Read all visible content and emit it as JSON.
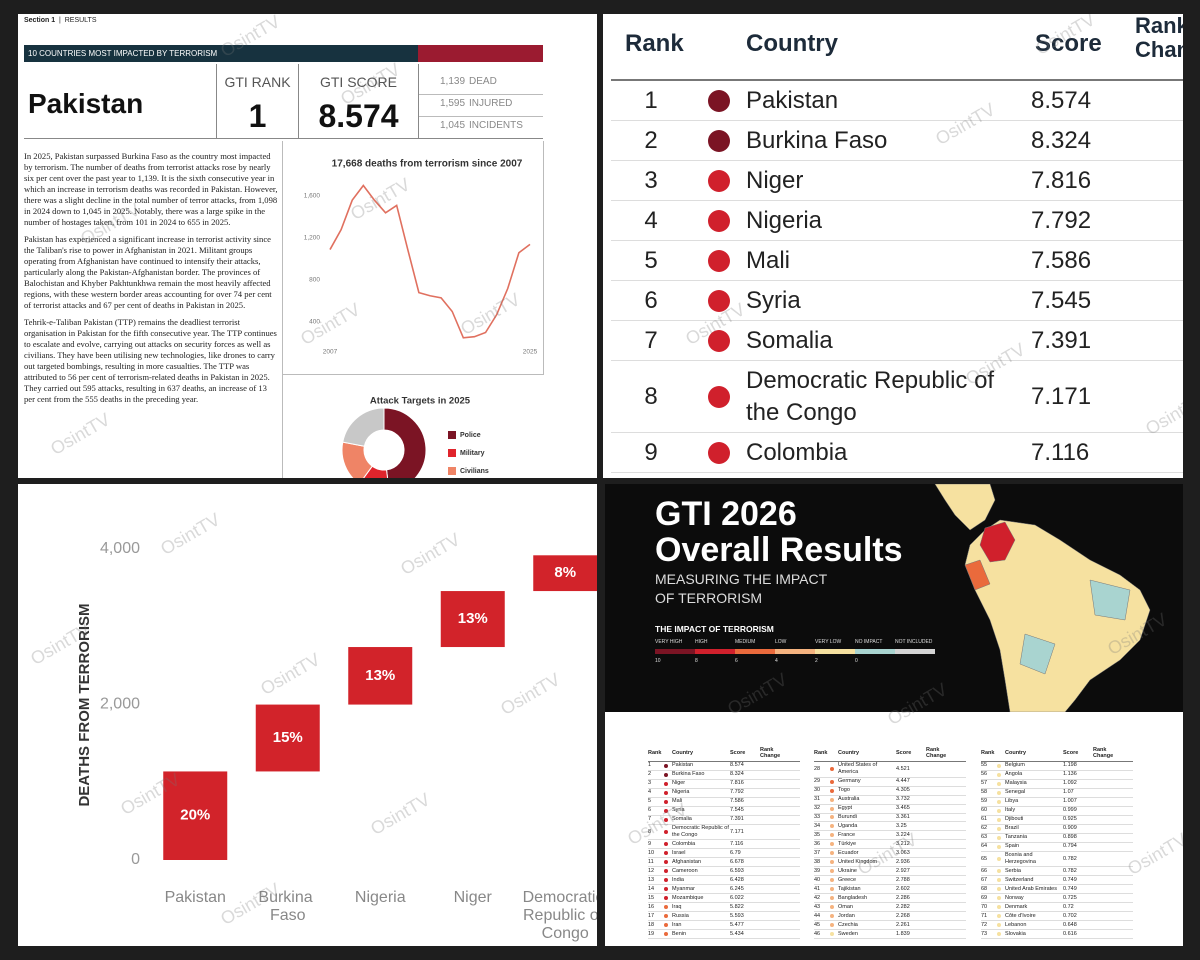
{
  "watermark": "OsintTV",
  "report": {
    "section": "Section 1",
    "section_name": "RESULTS",
    "banner": "10 COUNTRIES MOST IMPACTED BY TERRORISM",
    "country": "Pakistan",
    "rank_label": "GTI RANK",
    "rank": 1,
    "score_label": "GTI SCORE",
    "score": 8.574,
    "stats": [
      {
        "value": "1,139",
        "label": "DEAD"
      },
      {
        "value": "1,595",
        "label": "INJURED"
      },
      {
        "value": "1,045",
        "label": "INCIDENTS"
      }
    ],
    "paragraphs": [
      "In 2025, Pakistan surpassed Burkina Faso as the country most impacted by terrorism. The number of deaths from terrorist attacks rose by nearly six per cent over the past year to 1,139. It is the sixth consecutive year in which an increase in terrorism deaths was recorded in Pakistan. However, there was a slight decline in the total number of terror attacks, from 1,098 in 2024 down to 1,045 in 2025. Notably, there was a large spike in the number of hostages taken, from 101 in 2024 to 655 in 2025.",
      "Pakistan has experienced a significant increase in terrorist activity since the Taliban's rise to power in Afghanistan in 2021. Militant groups operating from Afghanistan have continued to intensify their attacks, particularly along the Pakistan-Afghanistan border. The provinces of Balochistan and Khyber Pakhtunkhwa remain the most heavily affected regions, with these western border areas accounting for over 74 per cent of terrorist attacks and 67 per cent of deaths in Pakistan in 2025.",
      "Tehrik-e-Taliban Pakistan (TTP) remains the deadliest terrorist organisation in Pakistan for the fifth consecutive year. The TTP continues to escalate and evolve, carrying out attacks on security forces as well as civilians. They have been utilising new technologies, like drones to carry out targeted bombings, resulting in more casualties. The TTP was attributed to 56 per cent of terrorism-related deaths in Pakistan in 2025. They carried out 595 attacks, resulting in 637 deaths, an increase of 13 per cent from the 555 deaths in the preceding year."
    ]
  },
  "ranking": {
    "columns": [
      "Rank",
      "Country",
      "Score",
      "Rank Change"
    ],
    "rows": [
      [
        1,
        "Pakistan",
        8.574
      ],
      [
        2,
        "Burkina Faso",
        8.324
      ],
      [
        3,
        "Niger",
        7.816
      ],
      [
        4,
        "Nigeria",
        7.792
      ],
      [
        5,
        "Mali",
        7.586
      ],
      [
        6,
        "Syria",
        7.545
      ],
      [
        7,
        "Somalia",
        7.391
      ],
      [
        8,
        "Democratic Republic of the Congo",
        7.171
      ],
      [
        9,
        "Colombia",
        7.116
      ]
    ]
  },
  "cover": {
    "title_line1": "GTI 2026",
    "title_line2": "Overall Results",
    "subtitle": "MEASURING THE IMPACT OF TERRORISM",
    "legend_title": "THE IMPACT OF TERRORISM",
    "legend": [
      {
        "label": "VERY HIGH",
        "color": "#7b1424"
      },
      {
        "label": "HIGH",
        "color": "#d0202c"
      },
      {
        "label": "MEDIUM",
        "color": "#ea6a3c"
      },
      {
        "label": "LOW",
        "color": "#f5b37f"
      },
      {
        "label": "VERY LOW",
        "color": "#f6e1a0"
      },
      {
        "label": "NO IMPACT",
        "color": "#a9d4d0"
      },
      {
        "label": "NOT INCLUDED",
        "color": "#d4d4d4"
      }
    ],
    "legend_ticks": [
      10,
      8,
      6,
      4,
      2,
      0
    ],
    "columns": [
      "Rank",
      "Country",
      "Score",
      "Rank Change"
    ],
    "tables": [
      [
        [
          1,
          "Pakistan",
          8.574
        ],
        [
          2,
          "Burkina Faso",
          8.324
        ],
        [
          3,
          "Niger",
          7.816
        ],
        [
          4,
          "Nigeria",
          7.792
        ],
        [
          5,
          "Mali",
          7.586
        ],
        [
          6,
          "Syria",
          7.545
        ],
        [
          7,
          "Somalia",
          7.391
        ],
        [
          8,
          "Democratic Republic of the Congo",
          7.171
        ],
        [
          9,
          "Colombia",
          7.116
        ],
        [
          10,
          "Israel",
          6.79
        ],
        [
          11,
          "Afghanistan",
          6.678
        ],
        [
          12,
          "Cameroon",
          6.593
        ],
        [
          13,
          "India",
          6.428
        ],
        [
          14,
          "Myanmar",
          6.245
        ],
        [
          15,
          "Mozambique",
          6.022
        ],
        [
          16,
          "Iraq",
          5.822
        ],
        [
          17,
          "Russia",
          5.593
        ],
        [
          18,
          "Iran",
          5.477
        ],
        [
          19,
          "Benin",
          5.434
        ]
      ],
      [
        [
          28,
          "United States of America",
          4.521
        ],
        [
          29,
          "Germany",
          4.447
        ],
        [
          30,
          "Togo",
          4.305
        ],
        [
          31,
          "Australia",
          3.732
        ],
        [
          32,
          "Egypt",
          3.465
        ],
        [
          33,
          "Burundi",
          3.361
        ],
        [
          34,
          "Uganda",
          3.25
        ],
        [
          35,
          "France",
          3.224
        ],
        [
          36,
          "Türkiye",
          3.212
        ],
        [
          37,
          "Ecuador",
          3.063
        ],
        [
          38,
          "United Kingdom",
          2.936
        ],
        [
          39,
          "Ukraine",
          2.927
        ],
        [
          40,
          "Greece",
          2.788
        ],
        [
          41,
          "Tajikistan",
          2.602
        ],
        [
          42,
          "Bangladesh",
          2.286
        ],
        [
          43,
          "Oman",
          2.282
        ],
        [
          44,
          "Jordan",
          2.268
        ],
        [
          45,
          "Czechia",
          2.261
        ],
        [
          46,
          "Sweden",
          1.839
        ]
      ],
      [
        [
          55,
          "Belgium",
          1.198
        ],
        [
          56,
          "Angola",
          1.136
        ],
        [
          57,
          "Malaysia",
          1.092
        ],
        [
          58,
          "Senegal",
          1.07
        ],
        [
          59,
          "Libya",
          1.007
        ],
        [
          60,
          "Italy",
          0.999
        ],
        [
          61,
          "Djibouti",
          0.925
        ],
        [
          62,
          "Brazil",
          0.909
        ],
        [
          63,
          "Tanzania",
          0.898
        ],
        [
          64,
          "Spain",
          0.794
        ],
        [
          65,
          "Bosnia and Herzegovina",
          0.782
        ],
        [
          66,
          "Serbia",
          0.782
        ],
        [
          67,
          "Switzerland",
          0.749
        ],
        [
          68,
          "United Arab Emirates",
          0.749
        ],
        [
          69,
          "Norway",
          0.725
        ],
        [
          70,
          "Denmark",
          0.72
        ],
        [
          71,
          "Côte d'Ivoire",
          0.702
        ],
        [
          72,
          "Lebanon",
          0.648
        ],
        [
          73,
          "Slovakia",
          0.616
        ]
      ]
    ]
  },
  "chart_data": [
    {
      "type": "line",
      "title": "17,668 deaths from terrorism since 2007",
      "x": [
        2007,
        2008,
        2009,
        2010,
        2011,
        2012,
        2013,
        2014,
        2015,
        2016,
        2017,
        2018,
        2019,
        2020,
        2021,
        2022,
        2023,
        2024,
        2025
      ],
      "series": [
        {
          "color": "#e0705f",
          "values": [
            1090,
            1280,
            1560,
            1700,
            1560,
            1440,
            1510,
            1090,
            680,
            650,
            630,
            500,
            250,
            260,
            300,
            470,
            720,
            1060,
            1139
          ]
        }
      ],
      "xlim": [
        2007,
        2025
      ],
      "xticks": [
        2007,
        2025
      ],
      "ylim": [
        200,
        1800
      ],
      "yticks": [
        {
          "value": 1600,
          "label": "1,600"
        },
        {
          "value": 1200,
          "label": "1,200"
        },
        800,
        400
      ]
    },
    {
      "type": "pie",
      "title": "Attack Targets in 2025",
      "categories": [
        "Police",
        "Military",
        "Civilians",
        null
      ],
      "values": [
        48,
        12,
        18,
        22
      ],
      "colors": [
        "#7b1424",
        "#e0242c",
        "#ef8466",
        "#c8c8c8"
      ]
    },
    {
      "type": "waterfall",
      "y_label": "DEATHS FROM TERRORISM",
      "categories": [
        "Pakistan",
        "Burkina Faso",
        "Nigeria",
        "Niger",
        "Democratic Republic of Congo"
      ],
      "values": [
        1139,
        860,
        740,
        720,
        460
      ],
      "share_labels": [
        "20%",
        "15%",
        "13%",
        "13%",
        "8%"
      ],
      "color": "#d2232a",
      "ylim": [
        0,
        4000
      ],
      "yticks": [
        0,
        {
          "value": 2000,
          "label": "2,000"
        },
        {
          "value": 4000,
          "label": "4,000"
        }
      ]
    }
  ]
}
